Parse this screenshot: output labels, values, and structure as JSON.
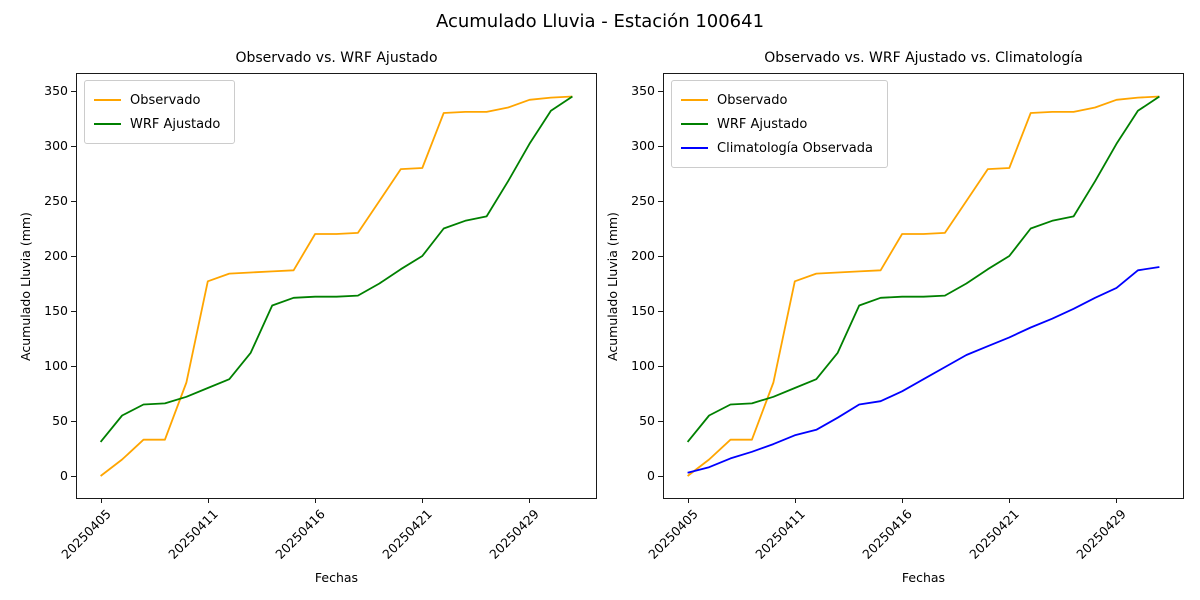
{
  "figure": {
    "suptitle": "Acumulado Lluvia - Estación 100641"
  },
  "chart_data": [
    {
      "type": "line",
      "title": "Observado vs. WRF Ajustado",
      "xlabel": "Fechas",
      "ylabel": "Acumulado Lluvia (mm)",
      "ylim": [
        0,
        350
      ],
      "y_ticks": [
        0,
        50,
        100,
        150,
        200,
        250,
        300,
        350
      ],
      "x_tick_labels": [
        "20250405",
        "20250411",
        "20250416",
        "20250421",
        "20250429"
      ],
      "x_tick_positions": [
        0,
        5,
        10,
        15,
        20
      ],
      "n_points": 23,
      "grid": false,
      "legend_position": "upper left",
      "series": [
        {
          "name": "Observado",
          "color": "#FFA500",
          "values": [
            0,
            15,
            33,
            33,
            85,
            177,
            184,
            185,
            186,
            187,
            220,
            220,
            221,
            250,
            279,
            280,
            330,
            331,
            331,
            335,
            342,
            344,
            345
          ]
        },
        {
          "name": "WRF Ajustado",
          "color": "#008000",
          "values": [
            31,
            55,
            65,
            66,
            72,
            80,
            88,
            112,
            155,
            162,
            163,
            163,
            164,
            175,
            188,
            200,
            225,
            232,
            236,
            268,
            302,
            332,
            345
          ]
        }
      ]
    },
    {
      "type": "line",
      "title": "Observado vs. WRF Ajustado vs. Climatología",
      "xlabel": "Fechas",
      "ylabel": "Acumulado Lluvia (mm)",
      "ylim": [
        0,
        350
      ],
      "y_ticks": [
        0,
        50,
        100,
        150,
        200,
        250,
        300,
        350
      ],
      "x_tick_labels": [
        "20250405",
        "20250411",
        "20250416",
        "20250421",
        "20250429"
      ],
      "x_tick_positions": [
        0,
        5,
        10,
        15,
        20
      ],
      "n_points": 23,
      "grid": false,
      "legend_position": "upper left",
      "series": [
        {
          "name": "Observado",
          "color": "#FFA500",
          "values": [
            0,
            15,
            33,
            33,
            85,
            177,
            184,
            185,
            186,
            187,
            220,
            220,
            221,
            250,
            279,
            280,
            330,
            331,
            331,
            335,
            342,
            344,
            345
          ]
        },
        {
          "name": "WRF Ajustado",
          "color": "#008000",
          "values": [
            31,
            55,
            65,
            66,
            72,
            80,
            88,
            112,
            155,
            162,
            163,
            163,
            164,
            175,
            188,
            200,
            225,
            232,
            236,
            268,
            302,
            332,
            345
          ]
        },
        {
          "name": "Climatología Observada",
          "color": "#0000FF",
          "values": [
            3,
            8,
            16,
            22,
            29,
            37,
            42,
            53,
            65,
            68,
            77,
            88,
            99,
            110,
            118,
            126,
            135,
            143,
            152,
            162,
            171,
            187,
            190
          ]
        }
      ]
    }
  ]
}
